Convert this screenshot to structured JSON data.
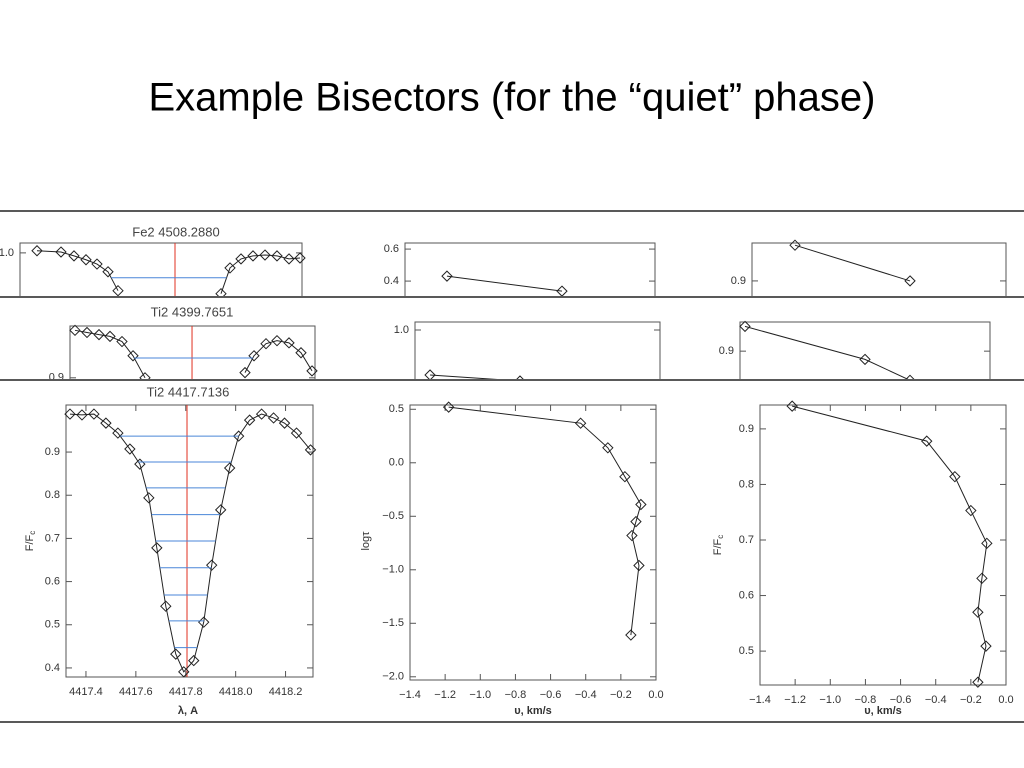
{
  "title": "Example Bisectors (for the “quiet” phase)",
  "chart_data": [
    {
      "type": "line",
      "title": "Fe2 4508.2880",
      "xlim": [
        4507.668,
        4508.796
      ],
      "ylim": [
        0.39,
        1.023
      ],
      "yticks": [
        {
          "value": 1,
          "label": "1.0"
        }
      ],
      "series": [
        {
          "color": "#222",
          "x": [
            4507.736,
            4507.832,
            4507.884,
            4507.932,
            4507.976,
            4508.02,
            4508.06,
            null,
            4508.472,
            4508.508,
            4508.552,
            4508.6,
            4508.648,
            4508.696,
            4508.744,
            4508.788
          ],
          "values": [
            1.005,
            1.002,
            0.993,
            0.984,
            0.974,
            0.956,
            0.912,
            null,
            0.905,
            0.965,
            0.986,
            0.993,
            0.995,
            0.993,
            0.986,
            0.988
          ]
        }
      ],
      "center": 4508.288,
      "center_color": "#e03020",
      "bisector_levels": [
        0.942
      ],
      "bisector_color": "#4a86d8"
    },
    {
      "type": "line",
      "xlim": [
        -1.4,
        0
      ],
      "ylim": [
        -1.062,
        0.638
      ],
      "yticks": [
        0.6,
        0.4
      ],
      "series": [
        {
          "color": "#222",
          "x": [
            -1.165,
            -0.521
          ],
          "values": [
            0.431,
            0.337
          ]
        }
      ]
    },
    {
      "type": "line",
      "xlim": [
        -1.4,
        0
      ],
      "ylim": [
        0.474,
        0.969
      ],
      "yticks": [
        0.9
      ],
      "series": [
        {
          "color": "#222",
          "x": [
            -1.163,
            -0.529
          ],
          "values": [
            0.965,
            0.9
          ]
        }
      ]
    },
    {
      "type": "line",
      "title": "Ti2 4399.7651",
      "xlim": [
        4399.277,
        4400.257
      ],
      "ylim": [
        0.39,
        1.02
      ],
      "yticks": [
        0.9
      ],
      "series": [
        {
          "color": "#222",
          "x": [
            4399.297,
            4399.345,
            4399.393,
            4399.437,
            4399.485,
            4399.529,
            4399.577,
            null,
            4399.977,
            4400.013,
            4400.061,
            4400.105,
            4400.153,
            4400.201,
            4400.245
          ],
          "values": [
            1.01,
            1.005,
            1.0,
            0.996,
            0.984,
            0.951,
            0.9,
            null,
            0.912,
            0.951,
            0.979,
            0.986,
            0.981,
            0.958,
            0.916
          ]
        }
      ],
      "center": 4399.7651,
      "center_color": "#e03020",
      "bisector_levels": [
        0.946
      ],
      "bisector_color": "#4a86d8"
    },
    {
      "type": "line",
      "xlim": [
        -1.4,
        0
      ],
      "ylim": [
        -1.67,
        1.08
      ],
      "yticks": [
        {
          "value": 1,
          "label": "1.0"
        }
      ],
      "series": [
        {
          "color": "#222",
          "x": [
            -1.314,
            -0.8
          ],
          "values": [
            0.55,
            0.49
          ]
        }
      ]
    },
    {
      "type": "line",
      "xlim": [
        -1.4,
        0
      ],
      "ylim": [
        0.453,
        0.953
      ],
      "yticks": [
        0.9
      ],
      "series": [
        {
          "color": "#222",
          "x": [
            -1.372,
            -0.7,
            -0.448
          ],
          "values": [
            0.945,
            0.885,
            0.847
          ]
        }
      ]
    },
    {
      "type": "line",
      "title": "Ti2 4417.7136",
      "x_label": "λ, A",
      "y_label": "F/F",
      "y_label_sub": "c",
      "xlim": [
        4417.32,
        4418.31
      ],
      "ylim": [
        0.379,
        1.009
      ],
      "xticks": [
        4417.4,
        4417.6,
        4417.8,
        {
          "value": 4418,
          "label": "4418.0"
        },
        4418.2
      ],
      "yticks": [
        0.9,
        0.8,
        0.7,
        0.6,
        0.5,
        0.4
      ],
      "series": [
        {
          "color": "#222",
          "x": [
            4417.336,
            4417.384,
            4417.432,
            4417.48,
            4417.528,
            4417.576,
            4417.616,
            4417.652,
            4417.684,
            4417.72,
            4417.76,
            4417.792,
            4417.832,
            4417.872,
            4417.904,
            4417.94,
            4417.976,
            4418.012,
            4418.056,
            4418.104,
            4418.152,
            4418.196,
            4418.244,
            4418.3
          ],
          "values": [
            0.988,
            0.986,
            0.988,
            0.967,
            0.944,
            0.907,
            0.872,
            0.794,
            0.678,
            0.543,
            0.432,
            0.391,
            0.417,
            0.506,
            0.638,
            0.766,
            0.863,
            0.937,
            0.974,
            0.988,
            0.979,
            0.967,
            0.944,
            0.905
          ]
        }
      ],
      "center": 4417.805,
      "center_color": "#e03020",
      "bisector_levels": [
        0.937,
        0.877,
        0.817,
        0.755,
        0.694,
        0.632,
        0.569,
        0.509,
        0.447
      ],
      "bisector_color": "#4a86d8"
    },
    {
      "type": "line",
      "x_label": "υ, km/s",
      "y_label": "logτ",
      "xlim": [
        -1.4,
        0
      ],
      "ylim": [
        -2.03,
        0.54
      ],
      "xticks": [
        {
          "value": -1.4,
          "label": "−1.4"
        },
        {
          "value": -1.2,
          "label": "−1.2"
        },
        {
          "value": -1,
          "label": "−1.0"
        },
        {
          "value": -0.8,
          "label": "−0.8"
        },
        {
          "value": -0.6,
          "label": "−0.6"
        },
        {
          "value": -0.4,
          "label": "−0.4"
        },
        {
          "value": -0.2,
          "label": "−0.2"
        },
        {
          "value": 0,
          "label": "0.0"
        }
      ],
      "yticks": [
        0.5,
        {
          "value": 0,
          "label": "0.0"
        },
        {
          "value": -0.5,
          "label": "−0.5"
        },
        {
          "value": -1,
          "label": "−1.0"
        },
        {
          "value": -1.5,
          "label": "−1.5"
        },
        {
          "value": -2,
          "label": "−2.0"
        }
      ],
      "series": [
        {
          "color": "#222",
          "x": [
            -1.18,
            -0.429,
            -0.274,
            -0.177,
            -0.086,
            -0.114,
            -0.137,
            -0.097,
            -0.143
          ],
          "values": [
            0.52,
            0.37,
            0.14,
            -0.13,
            -0.39,
            -0.55,
            -0.68,
            -0.96,
            -1.61
          ]
        }
      ]
    },
    {
      "type": "line",
      "x_label": "υ, km/s",
      "y_label": "F/F",
      "y_label_sub": "c",
      "xlim": [
        -1.4,
        0
      ],
      "ylim": [
        0.439,
        0.943
      ],
      "xticks": [
        {
          "value": -1.4,
          "label": "−1.4"
        },
        {
          "value": -1.2,
          "label": "−1.2"
        },
        {
          "value": -1,
          "label": "−1.0"
        },
        {
          "value": -0.8,
          "label": "−0.8"
        },
        {
          "value": -0.6,
          "label": "−0.6"
        },
        {
          "value": -0.4,
          "label": "−0.4"
        },
        {
          "value": -0.2,
          "label": "−0.2"
        },
        {
          "value": 0,
          "label": "0.0"
        }
      ],
      "yticks": [
        0.9,
        0.8,
        0.7,
        0.6,
        0.5
      ],
      "series": [
        {
          "color": "#222",
          "x": [
            -1.217,
            -0.451,
            -0.291,
            -0.2,
            -0.109,
            -0.137,
            -0.16,
            -0.114,
            -0.16
          ],
          "values": [
            0.941,
            0.878,
            0.814,
            0.753,
            0.694,
            0.631,
            0.57,
            0.509,
            0.444
          ]
        }
      ]
    }
  ]
}
